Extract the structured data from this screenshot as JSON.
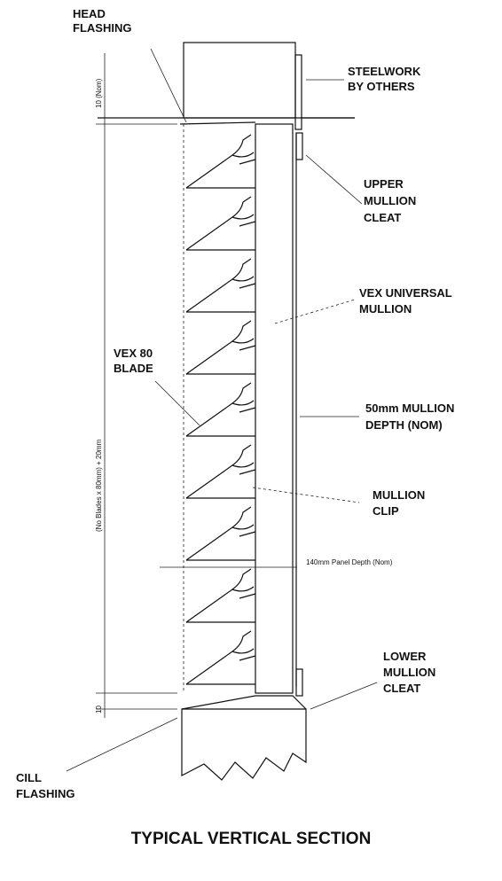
{
  "labels": {
    "head_flashing": [
      "HEAD",
      "FLASHING"
    ],
    "steelwork": [
      "STEELWORK",
      "BY OTHERS"
    ],
    "upper_cleat": [
      "UPPER",
      "MULLION",
      "CLEAT"
    ],
    "vex_mullion": [
      "VEX UNIVERSAL",
      "MULLION"
    ],
    "vex_blade": [
      "VEX 80",
      "BLADE"
    ],
    "mullion_depth": [
      "50mm MULLION",
      "DEPTH (NOM)"
    ],
    "mullion_clip": [
      "MULLION",
      "CLIP"
    ],
    "lower_cleat": [
      "LOWER",
      "MULLION",
      "CLEAT"
    ],
    "cill_flashing": [
      "CILL",
      "FLASHING"
    ]
  },
  "dimensions": {
    "top_gap": "10 (Nom)",
    "height": "(No Blades x 80mm) + 20mm",
    "bottom_gap": "10",
    "panel_depth": "140mm Panel Depth (Nom)"
  },
  "title": "TYPICAL VERTICAL SECTION"
}
